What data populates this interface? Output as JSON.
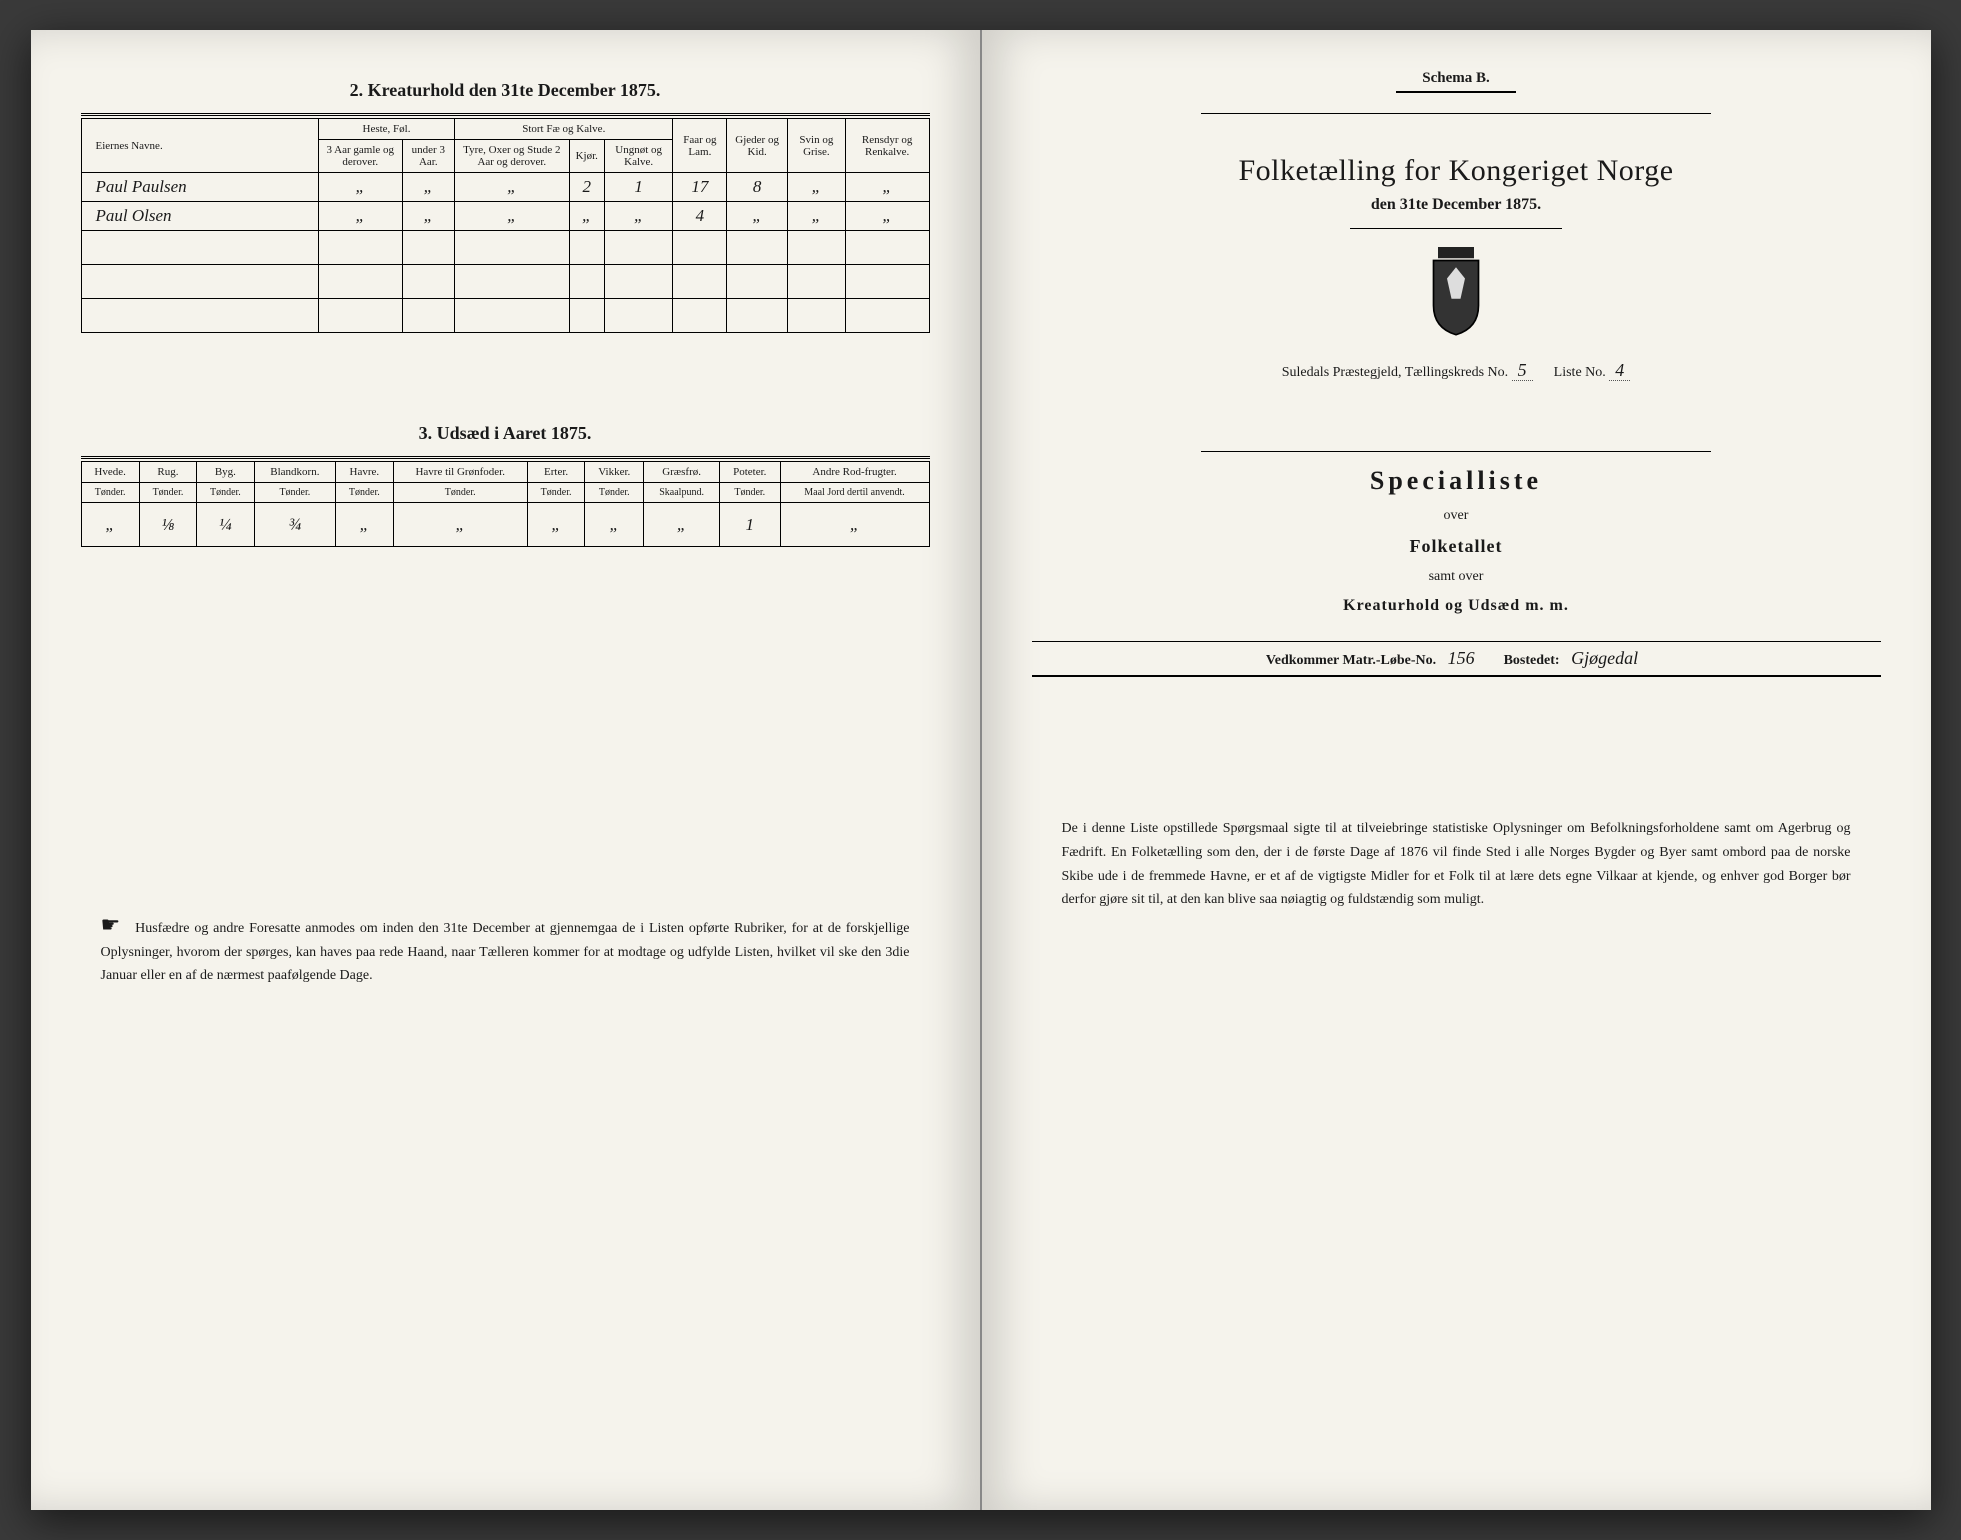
{
  "left": {
    "section2_title": "2. Kreaturhold den 31te December 1875.",
    "section3_title": "3. Udsæd i Aaret 1875.",
    "kreatur_headers": {
      "name": "Eiernes Navne.",
      "heste_group": "Heste, Føl.",
      "heste_3aar": "3 Aar gamle og derover.",
      "heste_under3": "under 3 Aar.",
      "stort_group": "Stort Fæ og Kalve.",
      "stort_tyre": "Tyre, Oxer og Stude 2 Aar og derover.",
      "stort_kjor": "Kjør.",
      "stort_ungnot": "Ungnøt og Kalve.",
      "faar": "Faar og Lam.",
      "gjeder": "Gjeder og Kid.",
      "svin": "Svin og Grise.",
      "rensdyr": "Rensdyr og Renkalve."
    },
    "kreatur_rows": [
      {
        "name": "Paul Paulsen",
        "c": [
          "„",
          "„",
          "„",
          "2",
          "1",
          "17",
          "8",
          "„",
          "„"
        ]
      },
      {
        "name": "Paul Olsen",
        "c": [
          "„",
          "„",
          "„",
          "„",
          "„",
          "4",
          "„",
          "„",
          "„"
        ]
      }
    ],
    "udsed_headers": [
      "Hvede.",
      "Rug.",
      "Byg.",
      "Blandkorn.",
      "Havre.",
      "Havre til Grønfoder.",
      "Erter.",
      "Vikker.",
      "Græsfrø.",
      "Poteter.",
      "Andre Rod-frugter."
    ],
    "udsed_sub": "Tønder.",
    "udsed_sub_gras": "Skaalpund.",
    "udsed_sub_andre": "Maal Jord dertil anvendt.",
    "udsed_row": [
      "„",
      "⅛",
      "¼",
      "¾",
      "„",
      "„",
      "„",
      "„",
      "„",
      "1",
      "„"
    ],
    "footnote": "Husfædre og andre Foresatte anmodes om inden den 31te December at gjennemgaa de i Listen opførte Rubriker, for at de forskjellige Oplysninger, hvorom der spørges, kan haves paa rede Haand, naar Tælleren kommer for at modtage og udfylde Listen, hvilket vil ske den 3die Januar eller en af de nærmest paafølgende Dage."
  },
  "right": {
    "schema": "Schema B.",
    "title": "Folketælling for Kongeriget Norge",
    "subtitle": "den 31te December 1875.",
    "parish_prefix": "Suledals Præstegjeld, Tællingskreds No.",
    "kreds_no": "5",
    "liste_label": "Liste No.",
    "liste_no": "4",
    "special": "Specialliste",
    "over": "over",
    "folketallet": "Folketallet",
    "samt": "samt over",
    "kreatur": "Kreaturhold og Udsæd m. m.",
    "matr_label": "Vedkommer Matr.-Løbe-No.",
    "matr_no": "156",
    "bostedet_label": "Bostedet:",
    "bostedet": "Gjøgedal",
    "footnote": "De i denne Liste opstillede Spørgsmaal sigte til at tilveiebringe statistiske Oplysninger om Befolkningsforholdene samt om Agerbrug og Fædrift. En Folketælling som den, der i de første Dage af 1876 vil finde Sted i alle Norges Bygder og Byer samt ombord paa de norske Skibe ude i de fremmede Havne, er et af de vigtigste Midler for et Folk til at lære dets egne Vilkaar at kjende, og enhver god Borger bør derfor gjøre sit til, at den kan blive saa nøiagtig og fuldstændig som muligt."
  }
}
